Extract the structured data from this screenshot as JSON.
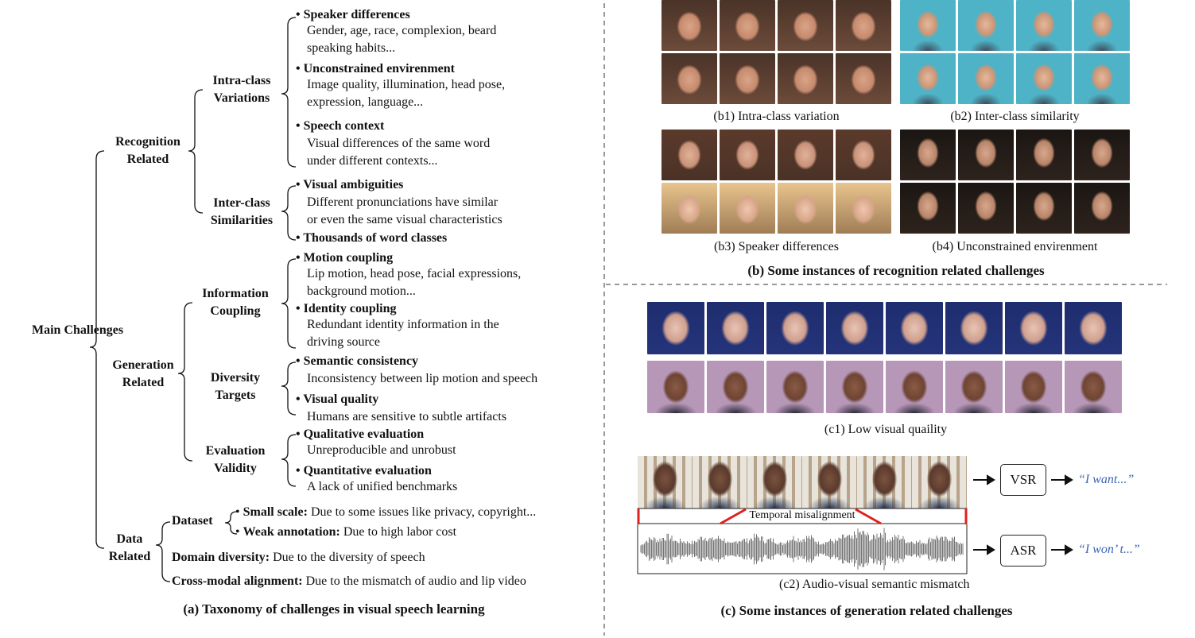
{
  "taxonomy": {
    "root": "Main Challenges",
    "recognition": {
      "label": "Recognition Related",
      "intra": {
        "label": "Intra-class Variations",
        "items": [
          {
            "title": "Speaker differences",
            "desc": [
              "Gender, age, race, complexion, beard",
              "speaking habits..."
            ]
          },
          {
            "title": "Unconstrained  envirenment",
            "desc": [
              "Image quality, illumination, head pose,",
              "expression, language..."
            ]
          },
          {
            "title": "Speech context",
            "desc": [
              "Visual differences of the same word",
              "under different contexts..."
            ]
          }
        ]
      },
      "inter": {
        "label": "Inter-class Similarities",
        "items": [
          {
            "title": "Visual ambiguities",
            "desc": [
              "Different pronunciations have similar",
              "or even the same visual characteristics"
            ]
          },
          {
            "title": "Thousands of word classes",
            "desc": []
          }
        ]
      }
    },
    "generation": {
      "label": "Generation Related",
      "coupling": {
        "label": "Information Coupling",
        "items": [
          {
            "title": "Motion coupling",
            "desc": [
              "Lip motion, head pose, facial expressions,",
              "background motion..."
            ]
          },
          {
            "title": "Identity coupling",
            "desc": [
              "Redundant identity information in the",
              "driving source"
            ]
          }
        ]
      },
      "diversity": {
        "label": "Diversity Targets",
        "items": [
          {
            "title": "Semantic consistency",
            "desc": [
              "Inconsistency between lip motion and speech"
            ]
          },
          {
            "title": "Visual quality",
            "desc": [
              "Humans are sensitive to subtle artifacts"
            ]
          }
        ]
      },
      "evaluation": {
        "label": "Evaluation Validity",
        "items": [
          {
            "title": "Qualitative evaluation",
            "desc": [
              "Unreproducible and unrobust"
            ]
          },
          {
            "title": "Quantitative evaluation",
            "desc": [
              "A lack of unified benchmarks"
            ]
          }
        ]
      }
    },
    "data": {
      "label": "Data Related",
      "dataset": {
        "label": "Dataset",
        "items": [
          {
            "title": "Small scale:",
            "desc": "Due to some issues like privacy, copyright..."
          },
          {
            "title": "Weak annotation:",
            "desc": "Due to high labor cost"
          }
        ]
      },
      "domain": {
        "title": "Domain diversity:",
        "desc": "Due to the diversity of speech"
      },
      "cross": {
        "title": "Cross-modal alignment:",
        "desc": "Due to the mismatch of audio and lip video"
      }
    },
    "caption": "(a) Taxonomy of challenges in visual speech learning"
  },
  "recognition_examples": {
    "b1": "(b1) Intra-class variation",
    "b2": "(b2) Inter-class similarity",
    "b3": "(b3) Speaker differences",
    "b4": "(b4) Unconstrained  envirenment",
    "caption": "(b) Some instances of recognition related challenges"
  },
  "generation_examples": {
    "c1": "(c1) Low visual quaility",
    "temporal": "Temporal misalignment",
    "vsr": "VSR",
    "asr": "ASR",
    "vsr_out": "“I want...”",
    "asr_out": "“I won’ t...”",
    "c2": "(c2) Audio-visual semantic mismatch",
    "caption": "(c) Some instances of generation related challenges"
  },
  "colors": {
    "accent_red": "#e0201c",
    "quote_blue": "#3c63b4"
  }
}
